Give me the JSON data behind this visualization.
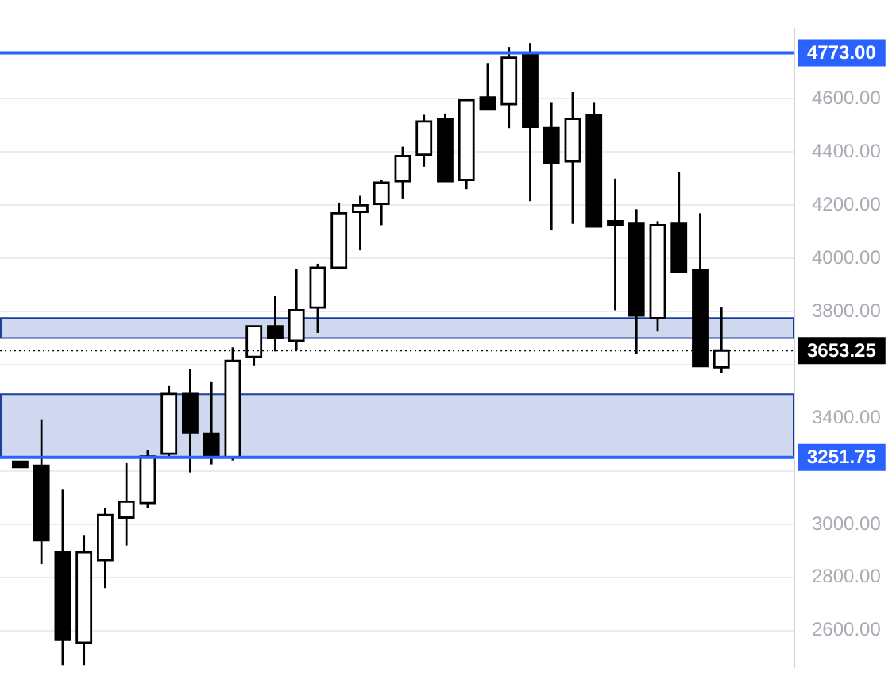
{
  "chart_data": {
    "type": "candlestick",
    "categories": [
      null,
      null,
      null,
      null,
      null,
      null,
      null,
      null,
      null,
      null,
      null,
      null,
      null,
      null,
      null,
      null,
      null,
      null,
      null,
      null,
      null,
      null,
      null,
      null,
      null,
      null,
      null,
      null,
      null,
      null,
      null,
      null,
      null,
      null
    ],
    "ohlc": [
      [
        3235,
        3235,
        3215,
        3215
      ],
      [
        3220,
        3395,
        2850,
        2940
      ],
      [
        2895,
        3130,
        2470,
        2565
      ],
      [
        2555,
        2960,
        2470,
        2895
      ],
      [
        2865,
        3060,
        2760,
        3035
      ],
      [
        3025,
        3230,
        2920,
        3085
      ],
      [
        3080,
        3280,
        3060,
        3255
      ],
      [
        3265,
        3520,
        3255,
        3490
      ],
      [
        3490,
        3585,
        3195,
        3345
      ],
      [
        3340,
        3535,
        3225,
        3255
      ],
      [
        3252,
        3665,
        3240,
        3615
      ],
      [
        3630,
        3745,
        3595,
        3745
      ],
      [
        3745,
        3860,
        3650,
        3700
      ],
      [
        3690,
        3960,
        3655,
        3805
      ],
      [
        3815,
        3980,
        3720,
        3965
      ],
      [
        3965,
        4210,
        3965,
        4170
      ],
      [
        4175,
        4235,
        4030,
        4200
      ],
      [
        4205,
        4295,
        4125,
        4285
      ],
      [
        4290,
        4420,
        4225,
        4385
      ],
      [
        4390,
        4540,
        4345,
        4515
      ],
      [
        4525,
        4545,
        4290,
        4290
      ],
      [
        4295,
        4600,
        4260,
        4595
      ],
      [
        4605,
        4735,
        4560,
        4560
      ],
      [
        4580,
        4795,
        4490,
        4755
      ],
      [
        4773,
        4810,
        4215,
        4495
      ],
      [
        4490,
        4585,
        4105,
        4360
      ],
      [
        4365,
        4625,
        4130,
        4525
      ],
      [
        4540,
        4585,
        4120,
        4120
      ],
      [
        4140,
        4300,
        3805,
        4125
      ],
      [
        4130,
        4185,
        3640,
        3785
      ],
      [
        3775,
        4140,
        3725,
        4125
      ],
      [
        4130,
        4325,
        3950,
        3950
      ],
      [
        3955,
        4170,
        3595,
        3595
      ],
      [
        3590,
        3815,
        3570,
        3653.25
      ]
    ],
    "color": "#000000",
    "colors": [
      "#000000",
      "#000000",
      "#000000",
      "#ffffff",
      "#ffffff",
      "#ffffff",
      "#ffffff",
      "#ffffff",
      "#000000",
      "#000000",
      "#ffffff",
      "#ffffff",
      "#000000",
      "#ffffff",
      "#ffffff",
      "#ffffff",
      "#ffffff",
      "#ffffff",
      "#ffffff",
      "#ffffff",
      "#000000",
      "#ffffff",
      "#000000",
      "#ffffff",
      "#000000",
      "#000000",
      "#ffffff",
      "#000000",
      "#000000",
      "#000000",
      "#ffffff",
      "#000000",
      "#000000",
      "#ffffff"
    ],
    "ylim": [
      2463,
      4863
    ],
    "yticks": [
      {
        "value": 2600,
        "label": "2600.00"
      },
      {
        "value": 2800,
        "label": "2800.00"
      },
      {
        "value": 3000,
        "label": "3000.00"
      },
      {
        "value": 3200,
        "label": null
      },
      {
        "value": 3400,
        "label": "3400.00"
      },
      {
        "value": 3600,
        "label": null
      },
      {
        "value": 3800,
        "label": "3800.00"
      },
      {
        "value": 4000,
        "label": "4000.00"
      },
      {
        "value": 4200,
        "label": "4200.00"
      },
      {
        "value": 4400,
        "label": "4400.00"
      },
      {
        "value": 4600,
        "label": "4600.00"
      }
    ],
    "grid": "y",
    "tick_labels": "y",
    "ref_lines": [
      {
        "axis": "y",
        "value": 4773,
        "label": "4773.00",
        "color": "#2962ff"
      },
      {
        "axis": "y",
        "value": 3653.25,
        "label": "3653.25",
        "color": "#000000",
        "line_style": "dotted"
      },
      {
        "axis": "y",
        "value": 3251.75,
        "label": "3251.75",
        "color": "#2962ff"
      }
    ],
    "bands": [
      {
        "axis": "y",
        "from": 3700,
        "to": 3776,
        "color": "#cfd8ee"
      },
      {
        "axis": "y",
        "from": 3254,
        "to": 3489,
        "color": "#cfd8ee"
      }
    ]
  }
}
